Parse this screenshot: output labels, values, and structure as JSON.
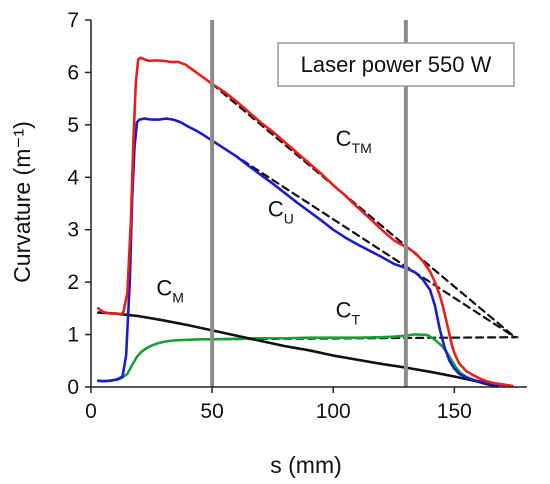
{
  "chart_data": {
    "type": "line",
    "title": "",
    "xlabel": "s (mm)",
    "ylabel": "Curvature (m⁻¹)",
    "xlim": [
      0,
      180
    ],
    "ylim": [
      0,
      7
    ],
    "x_ticks": [
      "0",
      "50",
      "100",
      "150"
    ],
    "y_ticks": [
      "0",
      "1",
      "2",
      "3",
      "4",
      "5",
      "6",
      "7"
    ],
    "grid": false,
    "legend_box": "Laser power 550 W",
    "vertical_lines": [
      50,
      130
    ],
    "annotations": [
      {
        "main": "C",
        "sub": "TM",
        "x": 101,
        "y": 4.6
      },
      {
        "main": "C",
        "sub": "U",
        "x": 73,
        "y": 3.25
      },
      {
        "main": "C",
        "sub": "M",
        "x": 27,
        "y": 1.75
      },
      {
        "main": "C",
        "sub": "T",
        "x": 101,
        "y": 1.33
      }
    ],
    "series": [
      {
        "name": "C_TM",
        "color": "#e8201c",
        "x": [
          3,
          5,
          8,
          11,
          12.5,
          13.5,
          15,
          16.5,
          17.5,
          18.5,
          19.5,
          20.5,
          22,
          24,
          27,
          30,
          33,
          36,
          39,
          42,
          45,
          48,
          50,
          55,
          60,
          65,
          70,
          75,
          80,
          85,
          90,
          95,
          100,
          105,
          110,
          115,
          120,
          125,
          128,
          131,
          134,
          137,
          140,
          142,
          144,
          145.5,
          147,
          148,
          149,
          150,
          152,
          155,
          158,
          161,
          164,
          167,
          170,
          172,
          174
        ],
        "y": [
          1.5,
          1.43,
          1.4,
          1.4,
          1.38,
          1.45,
          1.8,
          3.2,
          4.7,
          5.8,
          6.25,
          6.28,
          6.25,
          6.22,
          6.23,
          6.22,
          6.2,
          6.2,
          6.15,
          6.05,
          5.95,
          5.85,
          5.78,
          5.63,
          5.45,
          5.25,
          5.05,
          4.87,
          4.67,
          4.47,
          4.27,
          4.07,
          3.85,
          3.65,
          3.43,
          3.22,
          3.0,
          2.8,
          2.72,
          2.65,
          2.55,
          2.4,
          2.2,
          2.0,
          1.75,
          1.5,
          1.2,
          1.0,
          0.8,
          0.65,
          0.45,
          0.3,
          0.22,
          0.15,
          0.1,
          0.07,
          0.05,
          0.03,
          0.02
        ]
      },
      {
        "name": "C_U",
        "color": "#1c1ccc",
        "x": [
          3,
          5,
          8,
          11,
          13,
          14.5,
          16,
          17,
          18,
          19,
          20,
          22,
          25,
          28,
          31,
          34,
          37,
          40,
          43,
          46,
          50,
          55,
          60,
          65,
          70,
          75,
          80,
          85,
          90,
          95,
          100,
          105,
          110,
          115,
          120,
          125,
          128,
          131,
          134,
          137,
          140,
          142,
          144,
          146,
          148,
          150,
          152,
          155,
          158,
          161,
          164,
          167,
          170,
          172
        ],
        "y": [
          0.12,
          0.11,
          0.12,
          0.15,
          0.2,
          0.6,
          2.0,
          3.6,
          4.6,
          5.05,
          5.1,
          5.12,
          5.1,
          5.1,
          5.12,
          5.1,
          5.05,
          4.97,
          4.9,
          4.82,
          4.7,
          4.55,
          4.4,
          4.22,
          4.05,
          3.88,
          3.7,
          3.52,
          3.35,
          3.18,
          3.0,
          2.85,
          2.72,
          2.6,
          2.48,
          2.35,
          2.3,
          2.25,
          2.18,
          2.05,
          1.85,
          1.55,
          1.1,
          0.75,
          0.5,
          0.35,
          0.25,
          0.18,
          0.13,
          0.1,
          0.07,
          0.05,
          0.04,
          0.03
        ]
      },
      {
        "name": "C_T",
        "color": "#1aa03a",
        "x": [
          3,
          5,
          8,
          11,
          13,
          15,
          17,
          19,
          21,
          23,
          25,
          28,
          31,
          35,
          40,
          45,
          50,
          60,
          70,
          80,
          90,
          100,
          110,
          120,
          125,
          130,
          133,
          136,
          139,
          142,
          145,
          147,
          149,
          151,
          153,
          156,
          159,
          162,
          165,
          168,
          171,
          173
        ],
        "y": [
          0.12,
          0.11,
          0.12,
          0.14,
          0.18,
          0.25,
          0.42,
          0.58,
          0.68,
          0.74,
          0.79,
          0.84,
          0.87,
          0.89,
          0.9,
          0.91,
          0.91,
          0.92,
          0.93,
          0.93,
          0.94,
          0.94,
          0.94,
          0.95,
          0.96,
          0.98,
          1.0,
          1.0,
          0.99,
          0.9,
          0.78,
          0.65,
          0.5,
          0.35,
          0.25,
          0.17,
          0.12,
          0.08,
          0.06,
          0.05,
          0.04,
          0.03
        ]
      },
      {
        "name": "C_M",
        "color": "#111111",
        "x": [
          3,
          10,
          20,
          30,
          40,
          50,
          60,
          70,
          80,
          90,
          100,
          110,
          120,
          130,
          140,
          150,
          155,
          160,
          163,
          166,
          168
        ],
        "y": [
          1.42,
          1.4,
          1.35,
          1.27,
          1.18,
          1.08,
          0.98,
          0.88,
          0.78,
          0.7,
          0.6,
          0.52,
          0.44,
          0.37,
          0.29,
          0.2,
          0.15,
          0.1,
          0.06,
          0.03,
          0.01
        ]
      },
      {
        "name": "fit_TM",
        "color": "#111111",
        "style": "dashed",
        "x": [
          50,
          175
        ],
        "y": [
          5.78,
          0.95
        ]
      },
      {
        "name": "fit_U",
        "color": "#111111",
        "style": "dashed",
        "x": [
          50,
          175
        ],
        "y": [
          4.7,
          0.95
        ]
      },
      {
        "name": "fit_T",
        "color": "#111111",
        "style": "dashed",
        "x": [
          50,
          176
        ],
        "y": [
          0.91,
          0.95
        ]
      }
    ]
  }
}
